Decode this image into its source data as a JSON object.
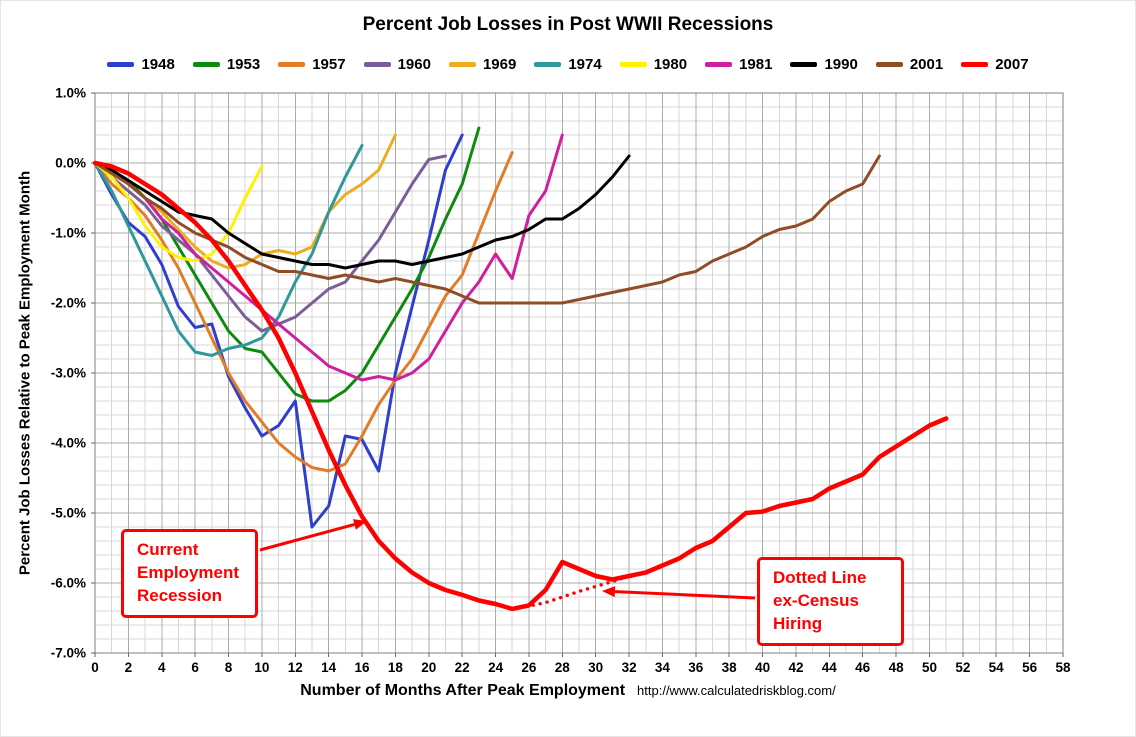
{
  "footer": {
    "url": "http://www.calculatedriskblog.com/"
  },
  "annotations": {
    "color": "#FF0000",
    "box1": {
      "lines": [
        "Current",
        "Employment",
        "Recession"
      ]
    },
    "box2": {
      "lines": [
        "Dotted Line",
        "ex-Census",
        "Hiring"
      ]
    }
  },
  "chart_data": {
    "type": "line",
    "title": "Percent Job Losses in Post WWII Recessions",
    "xlabel": "Number of Months After Peak Employment",
    "ylabel": "Percent Job Losses Relative to Peak Employment Month",
    "xlim": [
      0,
      58
    ],
    "ylim": [
      -7,
      1
    ],
    "xtick_step": 2,
    "ytick_step": 1,
    "x_minor_step": 1,
    "y_minor_step": 0.2,
    "grid": true,
    "legend_position": "top",
    "y_tick_suffix": "%",
    "series": [
      {
        "name": "1948",
        "color": "#2E3FD0",
        "width": 3,
        "start": 0,
        "in_legend": true,
        "values": [
          0,
          -0.45,
          -0.85,
          -1.05,
          -1.45,
          -2.05,
          -2.35,
          -2.3,
          -3.05,
          -3.5,
          -3.9,
          -3.75,
          -3.4,
          -5.2,
          -4.9,
          -3.9,
          -3.95,
          -4.4,
          -3.0,
          -2.05,
          -1.1,
          -0.1,
          0.4
        ]
      },
      {
        "name": "1953",
        "color": "#0E8A0E",
        "width": 3,
        "start": 0,
        "in_legend": true,
        "values": [
          0,
          -0.1,
          -0.25,
          -0.5,
          -0.8,
          -1.2,
          -1.6,
          -2.0,
          -2.4,
          -2.65,
          -2.7,
          -3.0,
          -3.3,
          -3.4,
          -3.4,
          -3.25,
          -3.0,
          -2.6,
          -2.2,
          -1.8,
          -1.35,
          -0.8,
          -0.3,
          0.5
        ]
      },
      {
        "name": "1957",
        "color": "#E07D26",
        "width": 3,
        "start": 0,
        "in_legend": true,
        "values": [
          0,
          -0.3,
          -0.5,
          -0.75,
          -1.1,
          -1.5,
          -2.0,
          -2.5,
          -3.0,
          -3.4,
          -3.7,
          -4.0,
          -4.2,
          -4.35,
          -4.4,
          -4.3,
          -3.9,
          -3.45,
          -3.1,
          -2.8,
          -2.35,
          -1.9,
          -1.6,
          -1.0,
          -0.4,
          0.15
        ]
      },
      {
        "name": "1960",
        "color": "#7A5E99",
        "width": 3,
        "start": 0,
        "in_legend": true,
        "values": [
          0,
          -0.2,
          -0.4,
          -0.6,
          -0.9,
          -1.1,
          -1.3,
          -1.6,
          -1.9,
          -2.2,
          -2.4,
          -2.3,
          -2.2,
          -2.0,
          -1.8,
          -1.7,
          -1.4,
          -1.1,
          -0.7,
          -0.3,
          0.05,
          0.1
        ]
      },
      {
        "name": "1969",
        "color": "#EBAE1F",
        "width": 3,
        "start": 0,
        "in_legend": true,
        "values": [
          0,
          -0.1,
          -0.3,
          -0.5,
          -0.7,
          -0.95,
          -1.2,
          -1.4,
          -1.5,
          -1.45,
          -1.3,
          -1.25,
          -1.3,
          -1.2,
          -0.7,
          -0.45,
          -0.3,
          -0.1,
          0.4
        ]
      },
      {
        "name": "1974",
        "color": "#2F989B",
        "width": 3,
        "start": 0,
        "in_legend": true,
        "values": [
          0,
          -0.4,
          -0.9,
          -1.4,
          -1.9,
          -2.4,
          -2.7,
          -2.75,
          -2.65,
          -2.6,
          -2.5,
          -2.2,
          -1.7,
          -1.3,
          -0.7,
          -0.2,
          0.25
        ]
      },
      {
        "name": "1980",
        "color": "#FFF200",
        "width": 3,
        "start": 0,
        "in_legend": true,
        "values": [
          0,
          -0.2,
          -0.5,
          -0.9,
          -1.2,
          -1.35,
          -1.4,
          -1.3,
          -1.0,
          -0.5,
          -0.05
        ]
      },
      {
        "name": "1981",
        "color": "#CE1F9E",
        "width": 3,
        "start": 0,
        "in_legend": true,
        "values": [
          0,
          -0.1,
          -0.3,
          -0.5,
          -0.8,
          -1.0,
          -1.3,
          -1.5,
          -1.7,
          -1.9,
          -2.1,
          -2.3,
          -2.5,
          -2.7,
          -2.9,
          -3.0,
          -3.1,
          -3.05,
          -3.1,
          -3.0,
          -2.8,
          -2.4,
          -2.0,
          -1.7,
          -1.3,
          -1.65,
          -0.75,
          -0.4,
          0.4
        ]
      },
      {
        "name": "1990",
        "color": "#000000",
        "width": 3,
        "start": 0,
        "in_legend": true,
        "values": [
          0,
          -0.1,
          -0.25,
          -0.4,
          -0.55,
          -0.7,
          -0.75,
          -0.8,
          -1.0,
          -1.15,
          -1.3,
          -1.35,
          -1.4,
          -1.45,
          -1.45,
          -1.5,
          -1.45,
          -1.4,
          -1.4,
          -1.45,
          -1.4,
          -1.35,
          -1.3,
          -1.2,
          -1.1,
          -1.05,
          -0.95,
          -0.8,
          -0.8,
          -0.65,
          -0.45,
          -0.2,
          0.1
        ]
      },
      {
        "name": "2001",
        "color": "#8F4D26",
        "width": 3,
        "start": 0,
        "in_legend": true,
        "values": [
          0,
          -0.15,
          -0.3,
          -0.5,
          -0.65,
          -0.85,
          -1.0,
          -1.1,
          -1.2,
          -1.35,
          -1.45,
          -1.55,
          -1.55,
          -1.6,
          -1.65,
          -1.6,
          -1.65,
          -1.7,
          -1.65,
          -1.7,
          -1.75,
          -1.8,
          -1.9,
          -2.0,
          -2.0,
          -2.0,
          -2.0,
          -2.0,
          -2.0,
          -1.95,
          -1.9,
          -1.85,
          -1.8,
          -1.75,
          -1.7,
          -1.6,
          -1.55,
          -1.4,
          -1.3,
          -1.2,
          -1.05,
          -0.95,
          -0.9,
          -0.8,
          -0.55,
          -0.4,
          -0.3,
          0.1
        ]
      },
      {
        "name": "2007",
        "color": "#FF0000",
        "width": 4.5,
        "start": 0,
        "in_legend": true,
        "values": [
          0,
          -0.05,
          -0.15,
          -0.3,
          -0.45,
          -0.65,
          -0.85,
          -1.1,
          -1.4,
          -1.75,
          -2.1,
          -2.5,
          -3.0,
          -3.55,
          -4.1,
          -4.6,
          -5.05,
          -5.4,
          -5.65,
          -5.85,
          -6.0,
          -6.1,
          -6.17,
          -6.25,
          -6.3,
          -6.37,
          -6.32,
          -6.1,
          -5.7,
          -5.8,
          -5.9,
          -5.95,
          -5.9,
          -5.85,
          -5.75,
          -5.65,
          -5.5,
          -5.4,
          -5.2,
          -5.0,
          -4.98,
          -4.9,
          -4.85,
          -4.8,
          -4.65,
          -4.55,
          -4.45,
          -4.2,
          -4.05,
          -3.9,
          -3.75,
          -3.65
        ]
      },
      {
        "name": "2007 ex-Census Hiring (dotted)",
        "color": "#FF0000",
        "width": 3.4,
        "start": 25,
        "in_legend": false,
        "dotted": true,
        "values": [
          -6.37,
          -6.33,
          -6.28,
          -6.2,
          -6.12,
          -6.05,
          -5.98,
          -5.9
        ]
      }
    ]
  }
}
